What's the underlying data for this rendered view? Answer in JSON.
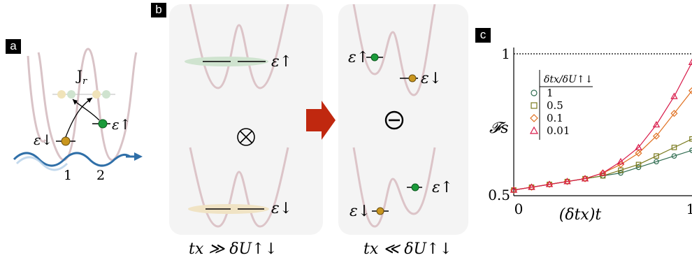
{
  "panels": {
    "a": "a",
    "b": "b",
    "c": "c"
  },
  "panel_a": {
    "hopping_label": "J",
    "hopping_sub": "r",
    "eps_up": "ε↑",
    "eps_down": "ε↓",
    "site_1": "1",
    "site_2": "2"
  },
  "panel_b": {
    "left_eps_up": "ε↑",
    "left_eps_down": "ε↓",
    "tensor_symbol": "⊗",
    "right_eps_up_top": "ε↑",
    "right_eps_down_top": "ε↓",
    "right_eps_up_bottom": "ε↑",
    "right_eps_down_bottom": "ε↓",
    "ominus_symbol": "⊖",
    "left_condition": "tx ≫ δU↑↓",
    "right_condition": "tx ≪ δU↑↓"
  },
  "chart_data": {
    "type": "line",
    "ylabel": "𝓕s",
    "xlabel": "(δtx)t",
    "xlim": [
      0,
      1
    ],
    "ylim": [
      0.5,
      1.0
    ],
    "xticks": [
      "0",
      "1"
    ],
    "yticks": [
      "0.5",
      "1"
    ],
    "reference_line": 1.0,
    "legend_header": "δtx/δU↑↓",
    "series": [
      {
        "name": "1",
        "color": "#2e6b4f",
        "marker": "circle",
        "x": [
          0,
          0.1,
          0.2,
          0.3,
          0.4,
          0.5,
          0.6,
          0.7,
          0.8,
          0.9,
          1.0
        ],
        "y": [
          0.52,
          0.53,
          0.54,
          0.55,
          0.56,
          0.57,
          0.58,
          0.6,
          0.62,
          0.64,
          0.66
        ]
      },
      {
        "name": "0.5",
        "color": "#7a7a1e",
        "marker": "square",
        "x": [
          0,
          0.1,
          0.2,
          0.3,
          0.4,
          0.5,
          0.6,
          0.7,
          0.8,
          0.9,
          1.0
        ],
        "y": [
          0.52,
          0.53,
          0.54,
          0.55,
          0.56,
          0.57,
          0.59,
          0.61,
          0.64,
          0.67,
          0.7
        ]
      },
      {
        "name": "0.1",
        "color": "#e07020",
        "marker": "diamond",
        "x": [
          0,
          0.1,
          0.2,
          0.3,
          0.4,
          0.5,
          0.6,
          0.7,
          0.8,
          0.9,
          1.0
        ],
        "y": [
          0.52,
          0.53,
          0.54,
          0.55,
          0.56,
          0.58,
          0.61,
          0.65,
          0.71,
          0.79,
          0.87
        ]
      },
      {
        "name": "0.01",
        "color": "#d81b4a",
        "marker": "triangle",
        "x": [
          0,
          0.1,
          0.2,
          0.3,
          0.4,
          0.5,
          0.6,
          0.7,
          0.8,
          0.9,
          1.0
        ],
        "y": [
          0.52,
          0.53,
          0.54,
          0.55,
          0.56,
          0.58,
          0.62,
          0.67,
          0.75,
          0.85,
          0.97
        ]
      }
    ]
  }
}
